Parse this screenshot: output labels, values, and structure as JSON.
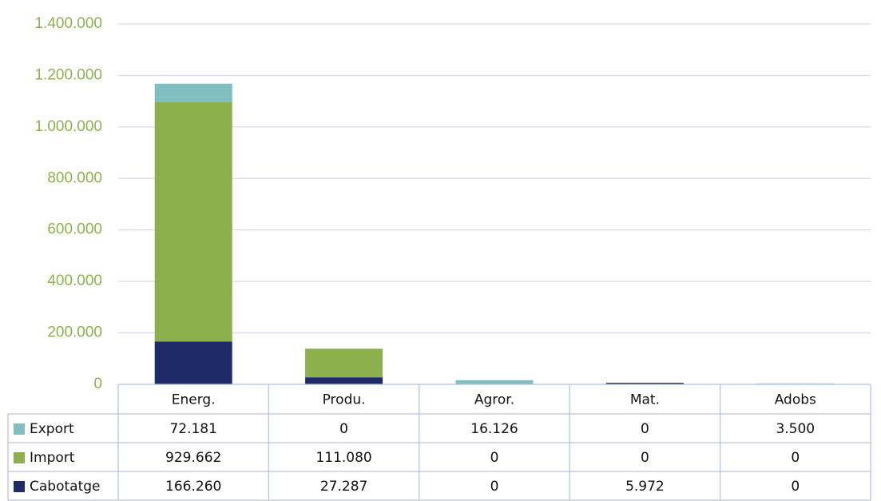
{
  "chart_data": {
    "type": "stacked-bar",
    "categories": [
      "Energ.",
      "Produ.",
      "Agror.",
      "Mat.",
      "Adobs"
    ],
    "series": [
      {
        "name": "Export",
        "color": "#7fbfc1",
        "values": [
          72181,
          0,
          16126,
          0,
          3500
        ],
        "value_labels": [
          "72.181",
          "0",
          "16.126",
          "0",
          "3.500"
        ]
      },
      {
        "name": "Import",
        "color": "#8cb04b",
        "values": [
          929662,
          111080,
          0,
          0,
          0
        ],
        "value_labels": [
          "929.662",
          "111.080",
          "0",
          "0",
          "0"
        ]
      },
      {
        "name": "Cabotatge",
        "color": "#1f2a68",
        "values": [
          166260,
          27287,
          0,
          5972,
          0
        ],
        "value_labels": [
          "166.260",
          "27.287",
          "0",
          "5.972",
          "0"
        ]
      }
    ],
    "ylim": [
      0,
      1400000
    ],
    "yticks": [
      0,
      {
        "value": 200000,
        "label": "200.000"
      },
      {
        "value": 400000,
        "label": "400.000"
      },
      {
        "value": 600000,
        "label": "600.000"
      },
      {
        "value": 800000,
        "label": "800.000"
      },
      {
        "value": 1000000,
        "label": "1.000.000"
      },
      {
        "value": 1200000,
        "label": "1.200.000"
      },
      {
        "value": 1400000,
        "label": "1.400.000"
      }
    ],
    "grid": true
  }
}
